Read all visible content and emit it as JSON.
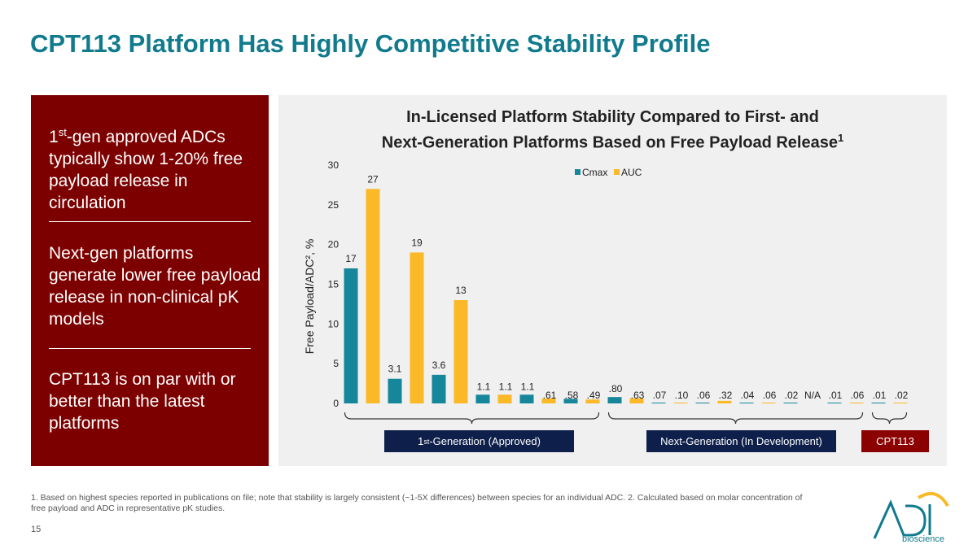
{
  "slide": {
    "title": "CPT113 Platform Has Highly Competitive Stability Profile",
    "page_number": "15",
    "footnote": "1. Based on highest species reported in publications on file; note that stability is largely consistent (~1-5X differences) between species for an individual ADC. 2. Calculated based on molar concentration of free payload and ADC in representative pK studies."
  },
  "left_panel": {
    "point1_sup": "st",
    "point1_prefix": "1",
    "point1_text": "-gen approved ADCs typically show 1-20% free payload release in circulation",
    "point2": "Next-gen platforms generate lower free payload release in non-clinical pK models",
    "point3": "CPT113 is on par with or better than the latest platforms"
  },
  "chart_data": {
    "type": "bar",
    "title_line1": "In-Licensed Platform Stability Compared to First- and",
    "title_line2": "Next-Generation Platforms Based on Free Payload Release",
    "title_sup": "1",
    "ylabel": "Free Payload/ADC², %",
    "ylim": [
      0,
      30
    ],
    "yticks": [
      "0",
      "5",
      "10",
      "15",
      "20",
      "25",
      "30"
    ],
    "legend": [
      "Cmax",
      "AUC"
    ],
    "series_colors": {
      "Cmax": "#16869a",
      "AUC": "#fbb827"
    },
    "bars": [
      {
        "series": "Cmax",
        "value": 17,
        "label": "17"
      },
      {
        "series": "AUC",
        "value": 27,
        "label": "27"
      },
      {
        "series": "Cmax",
        "value": 3.1,
        "label": "3.1"
      },
      {
        "series": "AUC",
        "value": 19,
        "label": "19"
      },
      {
        "series": "Cmax",
        "value": 3.6,
        "label": "3.6"
      },
      {
        "series": "AUC",
        "value": 13,
        "label": "13"
      },
      {
        "series": "Cmax",
        "value": 1.1,
        "label": "1.1"
      },
      {
        "series": "AUC",
        "value": 1.1,
        "label": "1.1"
      },
      {
        "series": "Cmax",
        "value": 1.1,
        "label": "1.1"
      },
      {
        "series": "AUC",
        "value": 0.61,
        "label": ".61"
      },
      {
        "series": "Cmax",
        "value": 0.58,
        "label": ".58"
      },
      {
        "series": "AUC",
        "value": 0.49,
        "label": ".49"
      },
      {
        "series": "Cmax",
        "value": 0.8,
        "label": ".80"
      },
      {
        "series": "AUC",
        "value": 0.63,
        "label": ".63"
      },
      {
        "series": "Cmax",
        "value": 0.07,
        "label": ".07"
      },
      {
        "series": "AUC",
        "value": 0.1,
        "label": ".10"
      },
      {
        "series": "Cmax",
        "value": 0.06,
        "label": ".06"
      },
      {
        "series": "AUC",
        "value": 0.32,
        "label": ".32"
      },
      {
        "series": "Cmax",
        "value": 0.04,
        "label": ".04"
      },
      {
        "series": "AUC",
        "value": 0.06,
        "label": ".06"
      },
      {
        "series": "Cmax",
        "value": 0.02,
        "label": ".02"
      },
      {
        "series": "AUC",
        "value": null,
        "label": "N/A"
      },
      {
        "series": "Cmax",
        "value": 0.01,
        "label": ".01"
      },
      {
        "series": "AUC",
        "value": 0.06,
        "label": ".06"
      },
      {
        "series": "Cmax",
        "value": 0.01,
        "label": ".01"
      },
      {
        "series": "AUC",
        "value": 0.02,
        "label": ".02"
      }
    ],
    "groups": [
      {
        "label_prefix": "1",
        "label_sup": "st",
        "label_rest": "-Generation (Approved)",
        "first_bar": 0,
        "last_bar": 11,
        "color": "#0d1f4a"
      },
      {
        "label_prefix": "Next-Generation (In Development)",
        "label_sup": "",
        "label_rest": "",
        "first_bar": 12,
        "last_bar": 23,
        "color": "#0d1f4a"
      },
      {
        "label_prefix": "CPT113",
        "label_sup": "",
        "label_rest": "",
        "first_bar": 24,
        "last_bar": 25,
        "color": "#8b0000"
      }
    ]
  },
  "logo": {
    "name": "bioscience"
  }
}
